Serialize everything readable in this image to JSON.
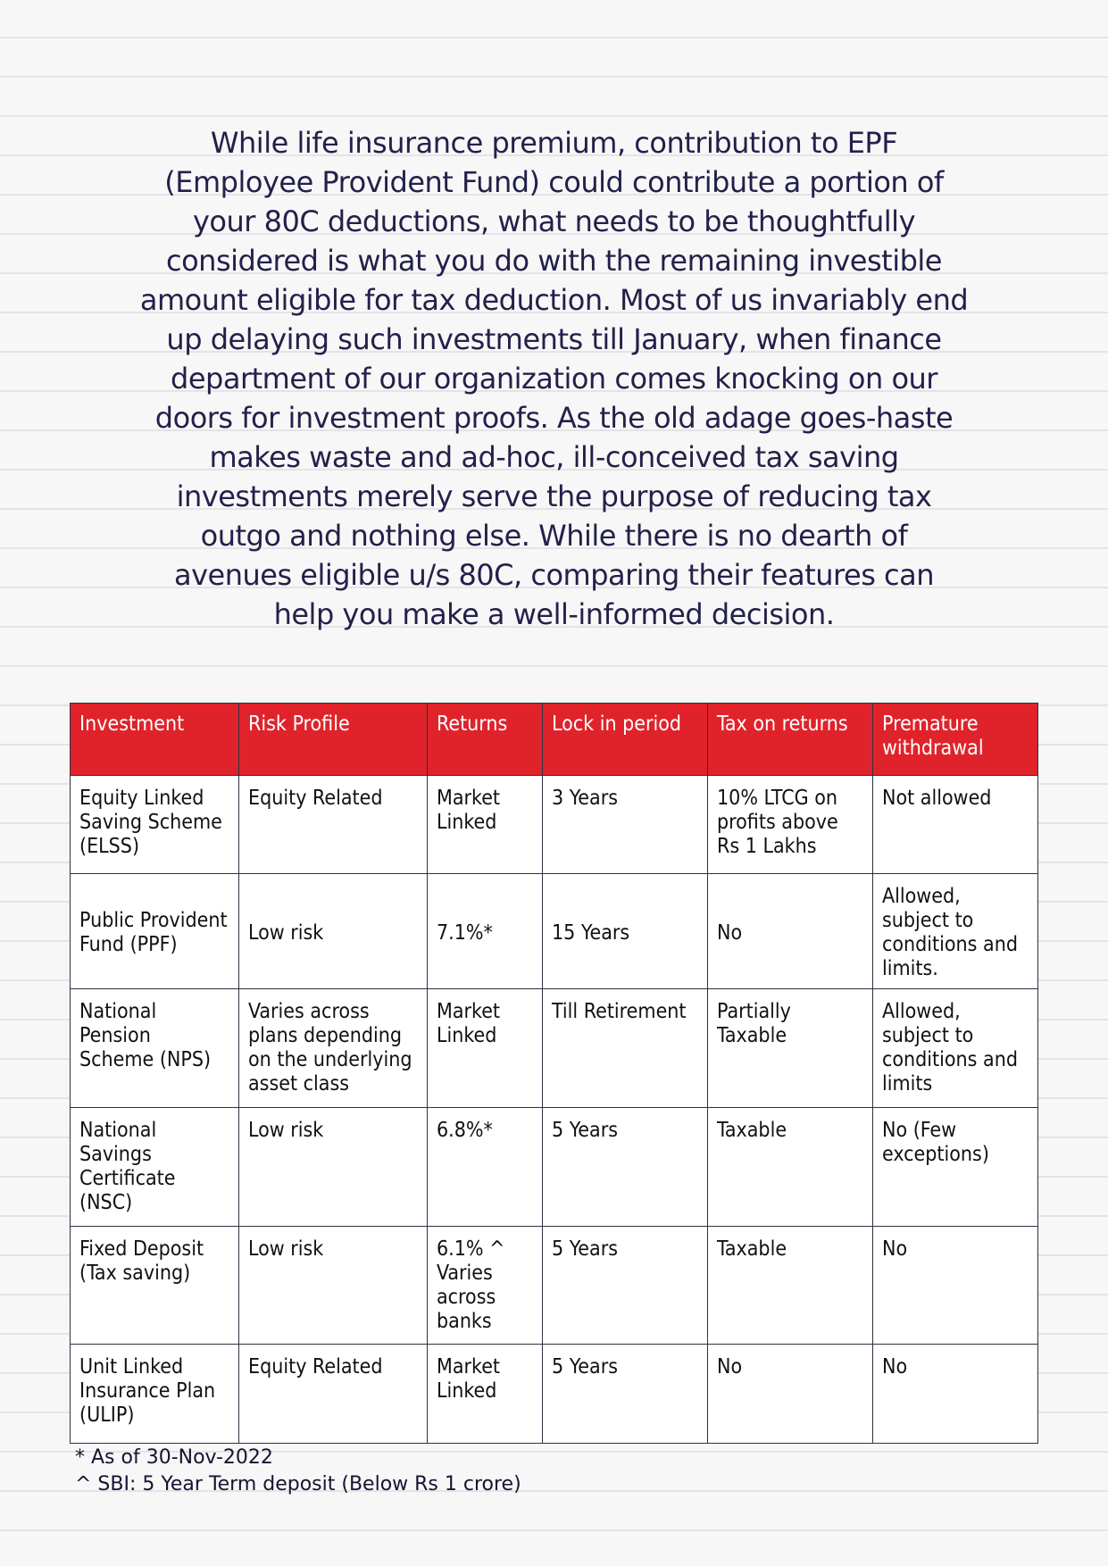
{
  "intro": {
    "lines": [
      "While life insurance premium, contribution to EPF",
      "(Employee Provident Fund) could contribute a portion of",
      "your 80C deductions, what needs to be thoughtfully",
      "considered is what you do with the remaining investible",
      "amount eligible for tax deduction. Most of us invariably end",
      "up delaying such investments till January, when finance",
      "department of our organization comes knocking on our",
      "doors for investment proofs. As the old adage goes-haste",
      "makes waste and ad-hoc, ill-conceived tax saving",
      "investments merely serve the purpose of reducing tax",
      "outgo and nothing else.  While there is no dearth of",
      "avenues eligible u/s 80C, comparing their features can",
      "help you make a well-informed decision."
    ]
  },
  "table": {
    "header_color": "#e0232b",
    "headers": [
      "Investment",
      "Risk Profile",
      "Returns",
      "Lock in period",
      "Tax on returns",
      "Premature withdrawal"
    ],
    "rows": [
      [
        "Equity Linked Saving Scheme (ELSS)",
        "Equity Related",
        "Market Linked",
        "3 Years",
        "10% LTCG on profits above Rs 1 Lakhs",
        "Not allowed"
      ],
      [
        "Public Provident Fund (PPF)",
        "Low risk",
        "7.1%*",
        "15 Years",
        "No",
        "Allowed, subject to conditions and limits."
      ],
      [
        "National Pension Scheme (NPS)",
        "Varies across plans depending on the underlying asset class",
        "Market Linked",
        "Till Retirement",
        "Partially Taxable",
        "Allowed, subject to conditions and limits"
      ],
      [
        "National Savings Certificate (NSC)",
        "Low risk",
        "6.8%*",
        "5 Years",
        "Taxable",
        "No (Few exceptions)"
      ],
      [
        "Fixed Deposit (Tax saving)",
        "Low risk",
        "6.1% ^ Varies across banks",
        "5 Years",
        "Taxable",
        "No"
      ],
      [
        "Unit Linked Insurance Plan (ULIP)",
        "Equity Related",
        "Market Linked",
        "5 Years",
        "No",
        "No"
      ]
    ]
  },
  "footnotes": [
    "* As of 30-Nov-2022",
    "^ SBI: 5 Year Term deposit (Below Rs 1 crore)"
  ]
}
